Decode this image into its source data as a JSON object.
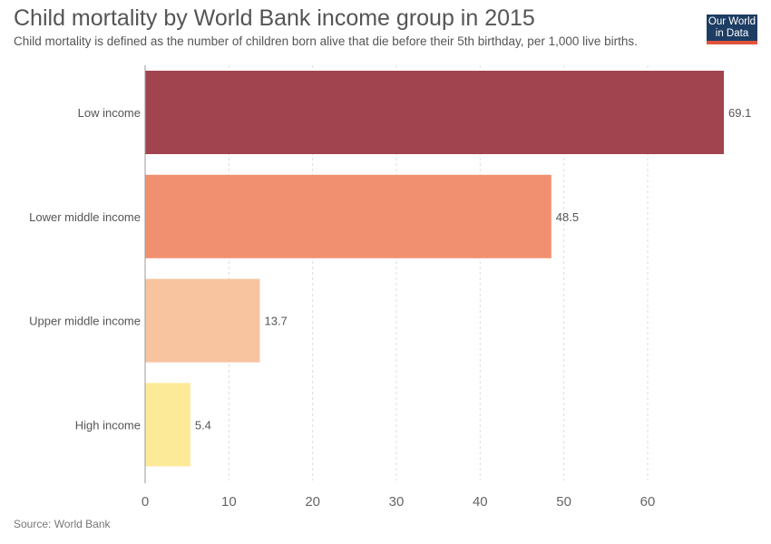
{
  "header": {
    "title": "Child mortality by World Bank income group in 2015",
    "subtitle": "Child mortality is defined as the number of children born alive that die before their 5th birthday, per 1,000 live births.",
    "logo_line1": "Our World",
    "logo_line2": "in Data"
  },
  "footer": {
    "source": "Source: World Bank"
  },
  "chart_data": {
    "type": "bar",
    "orientation": "horizontal",
    "title": "Child mortality by World Bank income group in 2015",
    "xlabel": "",
    "ylabel": "",
    "categories": [
      "Low income",
      "Lower middle income",
      "Upper middle income",
      "High income"
    ],
    "values": [
      69.1,
      48.5,
      13.7,
      5.4
    ],
    "value_labels": [
      "69.1",
      "48.5",
      "13.7",
      "5.4"
    ],
    "colors": [
      "#9c3a47",
      "#f08a68",
      "#f8c09a",
      "#fde992"
    ],
    "xlim": [
      0,
      69.1
    ],
    "xticks": [
      0,
      10,
      20,
      30,
      40,
      50,
      60
    ],
    "grid": "vertical dashed"
  }
}
